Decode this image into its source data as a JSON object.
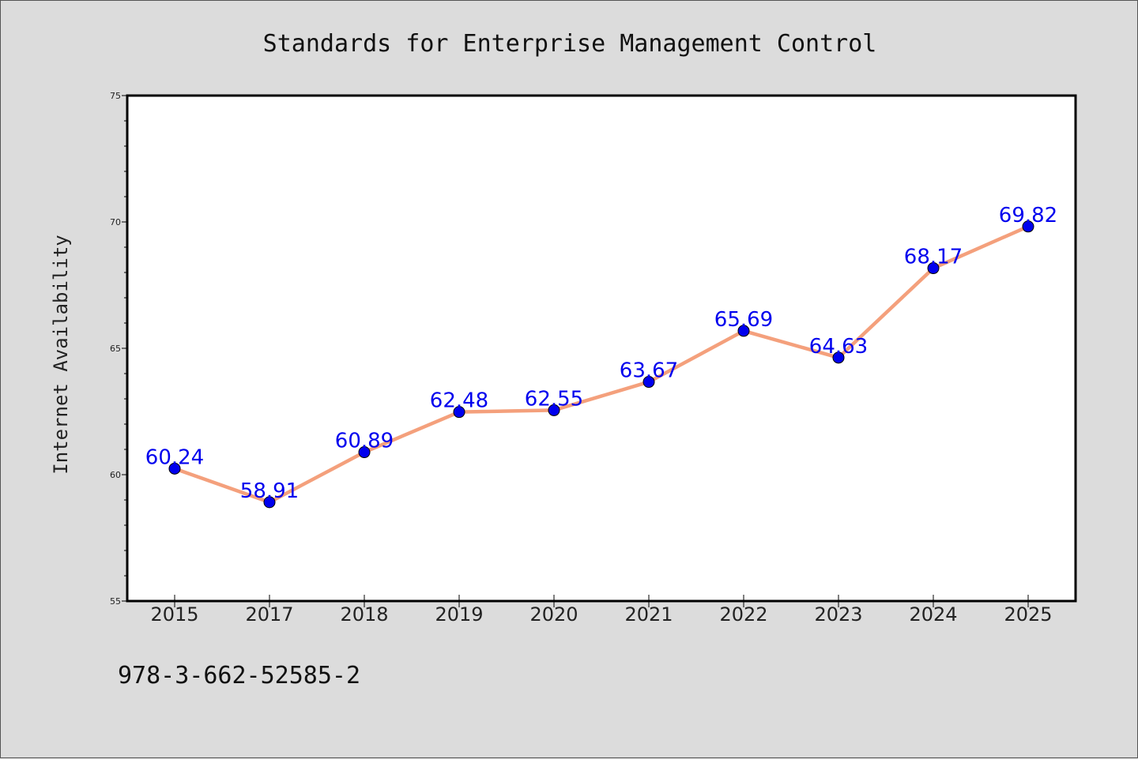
{
  "footnote": "978-3-662-52585-2",
  "chart_data": {
    "type": "line",
    "title": "Standards for Enterprise Management Control",
    "xlabel": "",
    "ylabel": "Internet Availability",
    "categories": [
      "2015",
      "2017",
      "2018",
      "2019",
      "2020",
      "2021",
      "2022",
      "2023",
      "2024",
      "2025"
    ],
    "series": [
      {
        "values": [
          60.24,
          58.91,
          60.89,
          62.48,
          62.55,
          63.67,
          65.69,
          64.63,
          68.17,
          69.82
        ],
        "labels": [
          "60.24",
          "58.91",
          "60.89",
          "62.48",
          "62.55",
          "63.67",
          "65.69",
          "64.63",
          "68.17",
          "69.82"
        ],
        "line_color": "#f4a07c",
        "marker_color": "#0000ee",
        "label_color": "#0000ee"
      }
    ],
    "ylim": [
      55,
      75
    ],
    "yticks": [
      55,
      60,
      65,
      70,
      75
    ],
    "ytick_labels": [
      "55",
      "60",
      "65",
      "70",
      "75"
    ],
    "grid": false,
    "legend": "none"
  }
}
